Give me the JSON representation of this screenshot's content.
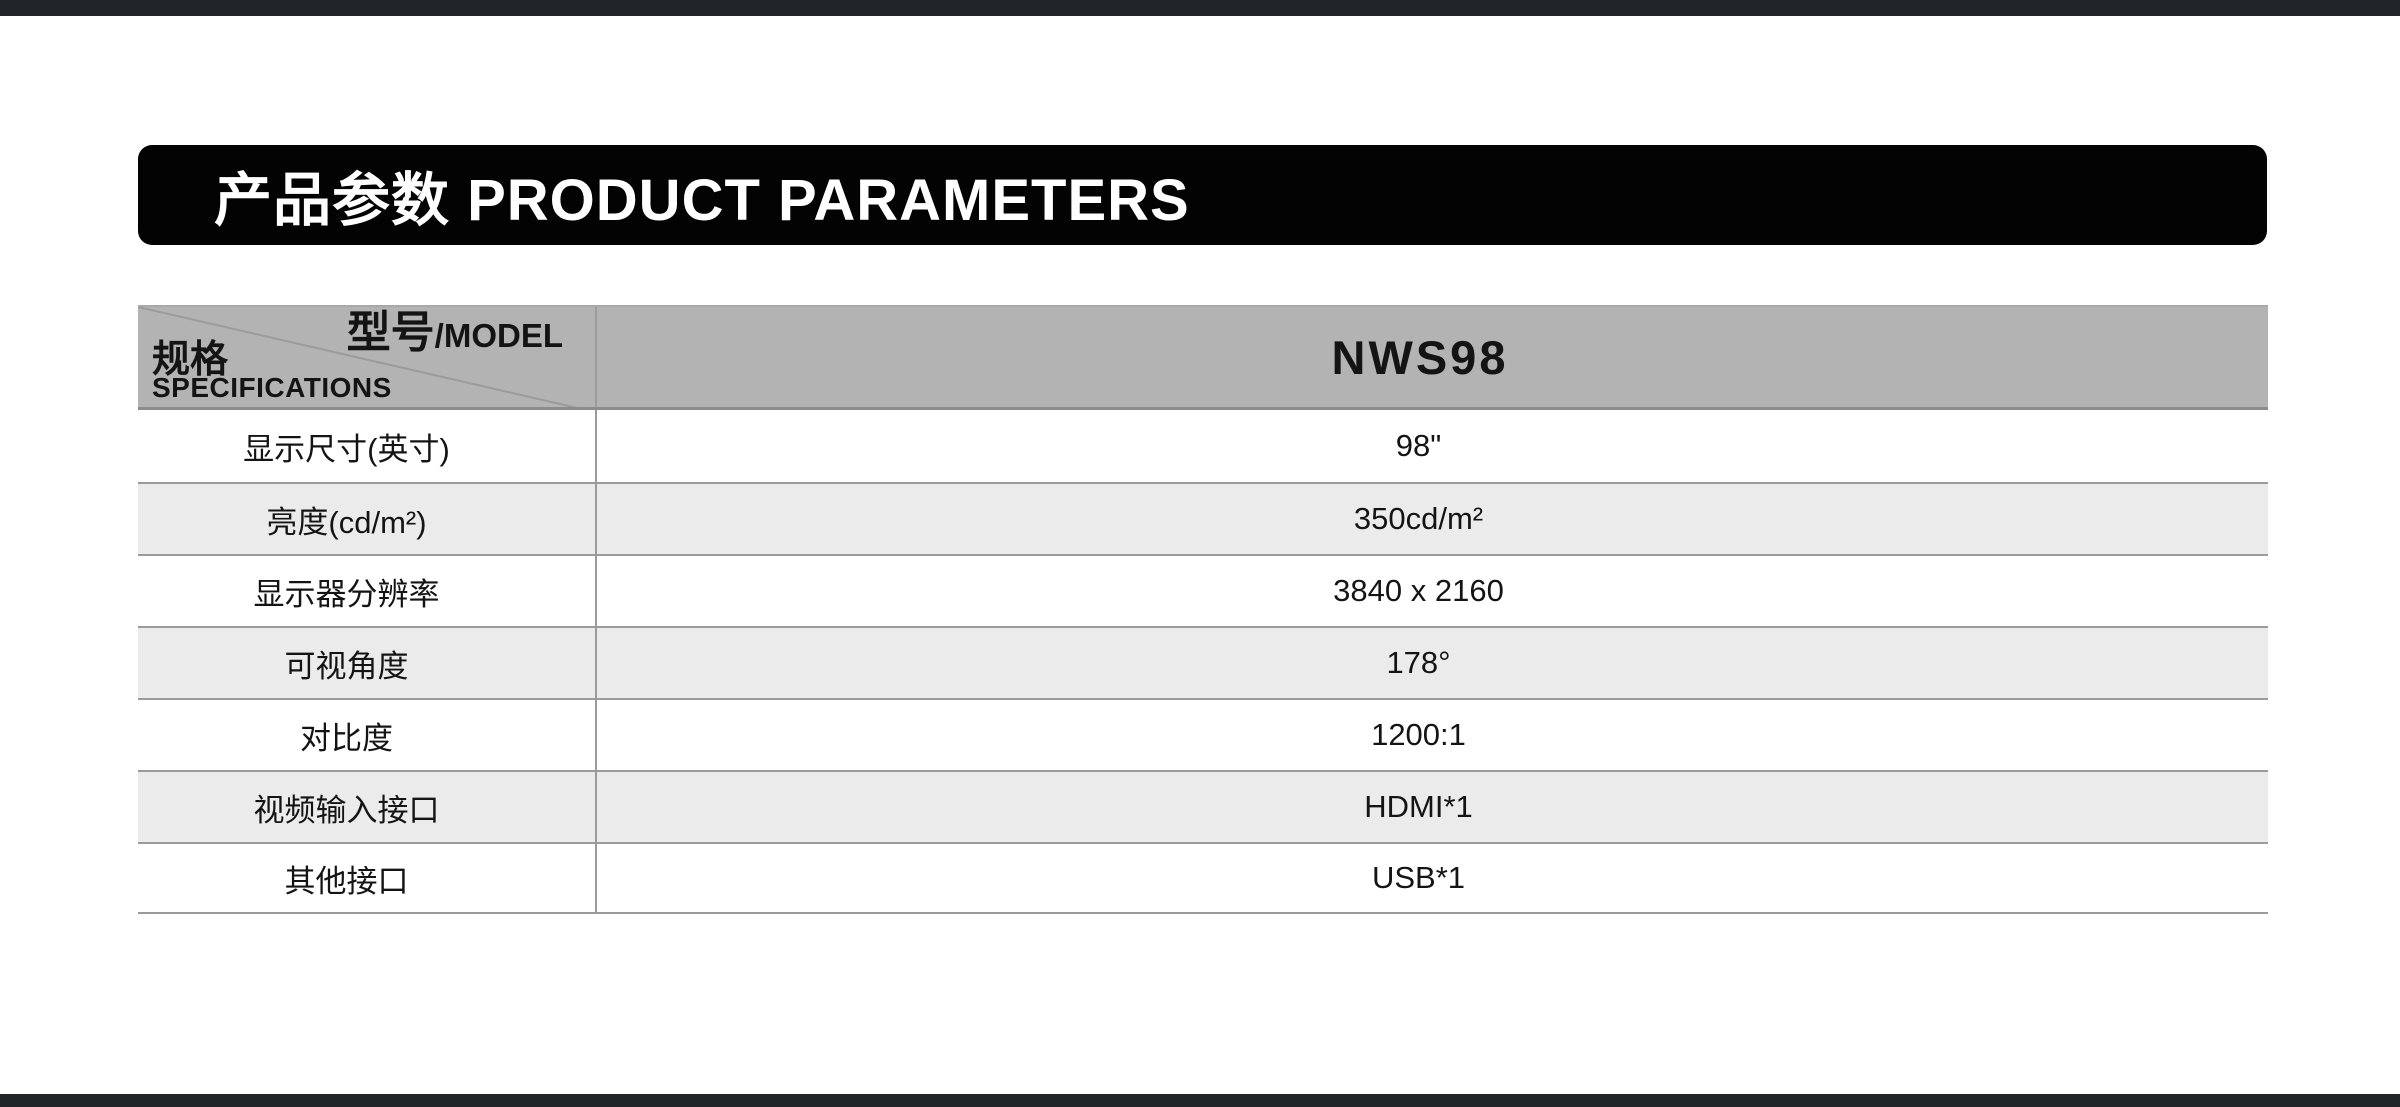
{
  "page": {
    "top_bar_color": "#212529",
    "bottom_bar_color": "#212529",
    "background_color": "#ffffff"
  },
  "banner": {
    "title": "产品参数 PRODUCT PARAMETERS",
    "bg_color": "#030303",
    "text_color": "#ffffff"
  },
  "table": {
    "header": {
      "spec_label_zh": "规格",
      "spec_label_en": "SPECIFICATIONS",
      "model_label_zh": "型号",
      "model_label_en": "/MODEL",
      "model_value": "NWS98",
      "bg_color": "#b3b3b3"
    },
    "rows": [
      {
        "label": "显示尺寸(英寸)",
        "value": "98\""
      },
      {
        "label": "亮度(cd/m²)",
        "value": "350cd/m²"
      },
      {
        "label": "显示器分辨率",
        "value": "3840 x 2160"
      },
      {
        "label": "可视角度",
        "value": "178°"
      },
      {
        "label": "对比度",
        "value": "1200:1"
      },
      {
        "label": "视频输入接口",
        "value": "HDMI*1"
      },
      {
        "label": "其他接口",
        "value": "USB*1"
      }
    ],
    "alt_row_color": "#ebebeb",
    "border_color": "#9b9b9b"
  }
}
